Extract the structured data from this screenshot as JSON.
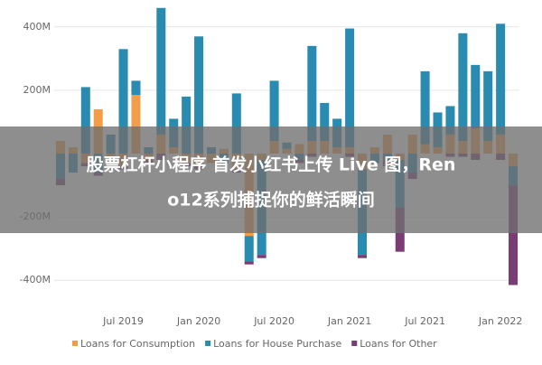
{
  "chart_data": {
    "type": "bar",
    "stacked": true,
    "categories": [
      null,
      null,
      null,
      null,
      null,
      "Jul 2019",
      null,
      null,
      null,
      null,
      null,
      "Jan 2020",
      null,
      null,
      null,
      null,
      null,
      "Jul 2020",
      null,
      null,
      null,
      null,
      null,
      "Jan 2021",
      null,
      null,
      null,
      null,
      null,
      "Jul 2021",
      null,
      null,
      null,
      null,
      null,
      "Jan 2022",
      null
    ],
    "series": [
      {
        "name": "Loans for Consumption",
        "color": "#f39c4a",
        "values": [
          40,
          20,
          -30,
          140,
          -20,
          -40,
          185,
          -20,
          60,
          20,
          -30,
          -40,
          -30,
          15,
          -50,
          -260,
          -20,
          40,
          15,
          30,
          40,
          40,
          20,
          20,
          -50,
          20,
          60,
          -20,
          60,
          30,
          20,
          60,
          40,
          80,
          40,
          60,
          -40
        ]
      },
      {
        "name": "Loans for House Purchase",
        "color": "#2a8bb0",
        "values": [
          -80,
          -60,
          210,
          -60,
          60,
          330,
          45,
          20,
          400,
          90,
          180,
          370,
          20,
          -30,
          190,
          -80,
          -300,
          190,
          20,
          -20,
          300,
          120,
          90,
          375,
          -270,
          -30,
          -20,
          -150,
          -60,
          230,
          110,
          90,
          340,
          200,
          220,
          350,
          -60
        ]
      },
      {
        "name": "Loans for Other",
        "color": "#7a3c74",
        "values": [
          -20,
          0,
          -10,
          -10,
          0,
          -10,
          0,
          -10,
          -20,
          0,
          -10,
          -10,
          0,
          0,
          -10,
          -10,
          -10,
          0,
          0,
          -10,
          -10,
          0,
          0,
          -10,
          -10,
          0,
          -20,
          -140,
          -20,
          0,
          0,
          -10,
          -10,
          -20,
          0,
          -20,
          -315
        ]
      }
    ],
    "ylim": [
      -485,
      485
    ],
    "yticks": [
      {
        "value": -400,
        "label": "-400M"
      },
      {
        "value": -200,
        "label": "-200M"
      },
      {
        "value": 200,
        "label": "200M"
      },
      {
        "value": 400,
        "label": "400M"
      }
    ],
    "grid": true
  },
  "overlay_text": [
    "股票杠杆小程序 首发小红书上传 Live 图，Ren",
    "o12系列捕捉你的鲜活瞬间"
  ]
}
